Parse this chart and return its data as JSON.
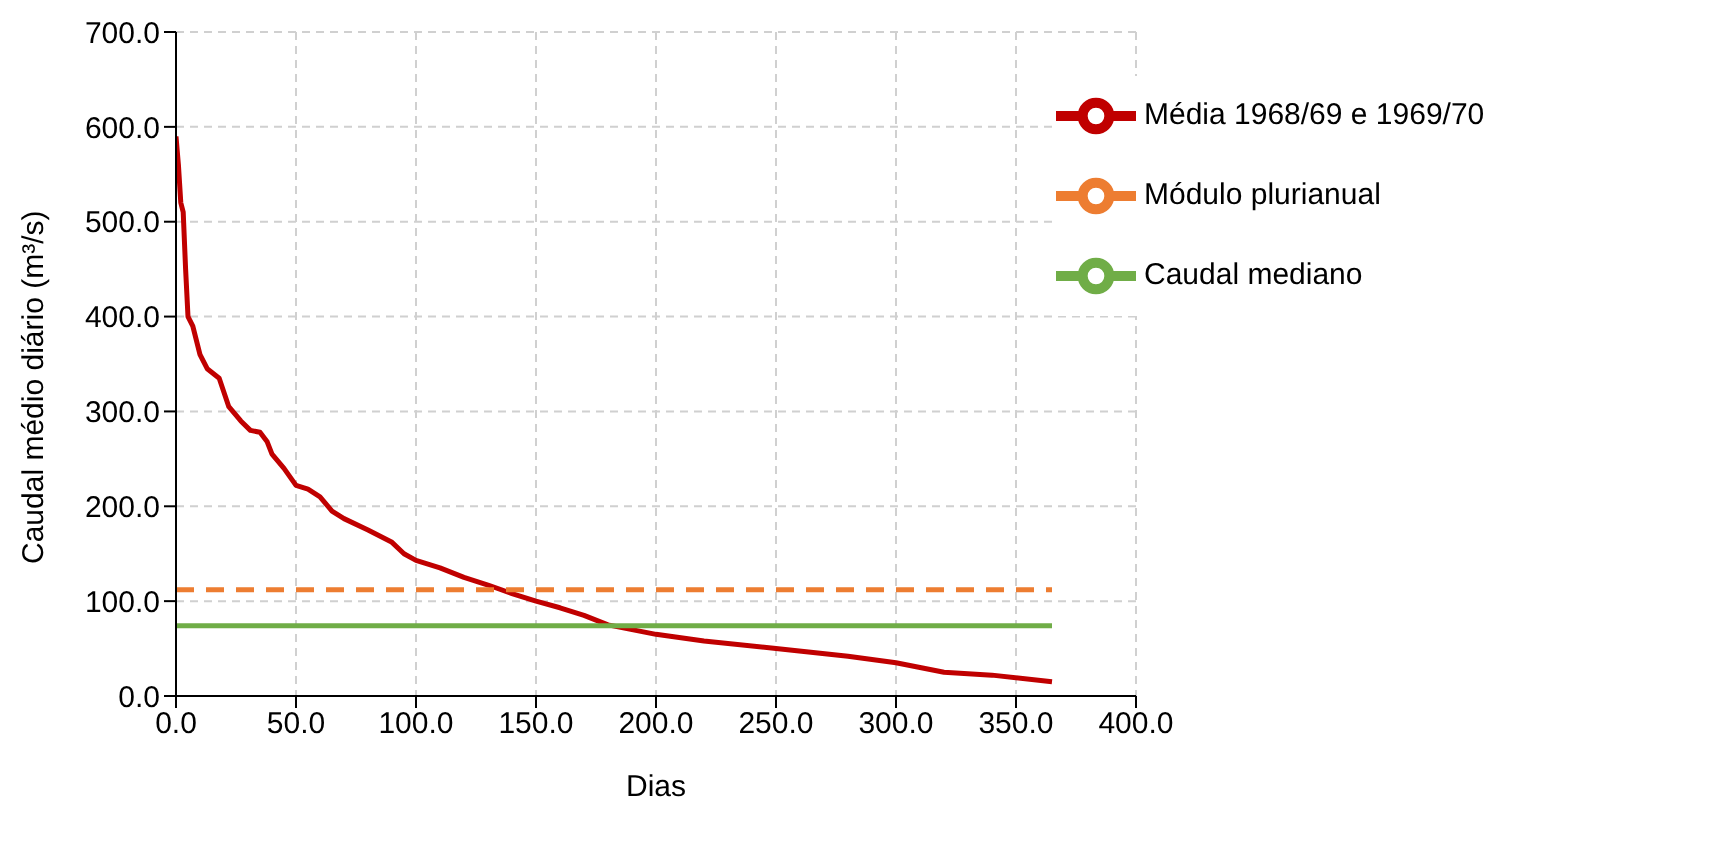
{
  "chart_data": {
    "type": "line",
    "xlabel": "Dias",
    "ylabel": "Caudal médio diário (m³/s)",
    "xlim": [
      0,
      400
    ],
    "xticks": [
      {
        "value": 0,
        "label": "0.0"
      },
      {
        "value": 50,
        "label": "50.0"
      },
      {
        "value": 100,
        "label": "100.0"
      },
      {
        "value": 150,
        "label": "150.0"
      },
      {
        "value": 200,
        "label": "200.0"
      },
      {
        "value": 250,
        "label": "250.0"
      },
      {
        "value": 300,
        "label": "300.0"
      },
      {
        "value": 350,
        "label": "350.0"
      },
      {
        "value": 400,
        "label": "400.0"
      }
    ],
    "ylim": [
      0,
      700
    ],
    "yticks": [
      {
        "value": 0,
        "label": "0.0"
      },
      {
        "value": 100,
        "label": "100.0"
      },
      {
        "value": 200,
        "label": "200.0"
      },
      {
        "value": 300,
        "label": "300.0"
      },
      {
        "value": 400,
        "label": "400.0"
      },
      {
        "value": 500,
        "label": "500.0"
      },
      {
        "value": 600,
        "label": "600.0"
      },
      {
        "value": 700,
        "label": "700.0"
      }
    ],
    "grid": true,
    "legend": "top right",
    "marker": "none",
    "series": [
      {
        "name": "Média 1968/69 e 1969/70",
        "color": "#c00000",
        "line_style": "solid",
        "x": [
          0,
          1,
          2,
          3,
          4,
          5,
          7,
          10,
          13,
          18,
          20,
          22,
          27,
          31,
          35,
          38,
          40,
          45,
          50,
          55,
          60,
          65,
          70,
          80,
          90,
          95,
          100,
          110,
          120,
          130,
          140,
          150,
          160,
          170,
          180,
          190,
          200,
          220,
          250,
          280,
          300,
          320,
          340,
          365
        ],
        "values": [
          590,
          560,
          520,
          510,
          450,
          400,
          390,
          360,
          345,
          335,
          320,
          305,
          290,
          280,
          278,
          268,
          255,
          240,
          222,
          218,
          210,
          195,
          187,
          175,
          162,
          150,
          143,
          135,
          125,
          117,
          108,
          100,
          93,
          85,
          75,
          70,
          65,
          58,
          50,
          42,
          35,
          25,
          22,
          15
        ]
      },
      {
        "name": "Módulo plurianual",
        "color": "#ed7d31",
        "line_style": "dashed",
        "x": [
          0,
          365
        ],
        "values": [
          112,
          112
        ]
      },
      {
        "name": "Caudal mediano",
        "color": "#70ad47",
        "line_style": "solid",
        "x": [
          0,
          365
        ],
        "values": [
          74,
          74
        ]
      }
    ]
  }
}
